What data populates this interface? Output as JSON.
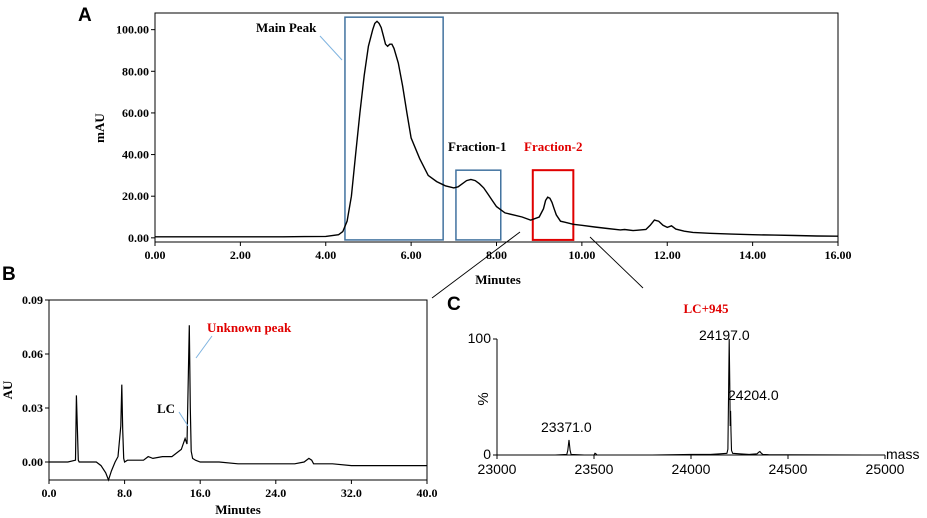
{
  "chart_data": [
    {
      "panel_label": "A",
      "type": "line",
      "xlabel": "Minutes",
      "ylabel": "mAU",
      "xlim": [
        0,
        16
      ],
      "ylim": [
        -2,
        108
      ],
      "x_ticks": [
        "0.00",
        "2.00",
        "4.00",
        "6.00",
        "8.00",
        "10.00",
        "12.00",
        "14.00",
        "16.00"
      ],
      "y_ticks": [
        "0.00",
        "20.00",
        "40.00",
        "60.00",
        "80.00",
        "100.00"
      ],
      "x_tick_values": [
        0,
        2,
        4,
        6,
        8,
        10,
        12,
        14,
        16
      ],
      "y_tick_values": [
        0,
        20,
        40,
        60,
        80,
        100
      ],
      "series": [
        {
          "x": [
            0,
            1,
            2,
            3,
            3.5,
            4,
            4.3,
            4.4,
            4.5,
            4.6,
            4.7,
            4.8,
            4.9,
            5.0,
            5.1,
            5.15,
            5.2,
            5.25,
            5.3,
            5.35,
            5.4,
            5.45,
            5.5,
            5.55,
            5.6,
            5.7,
            5.8,
            5.9,
            6.0,
            6.2,
            6.4,
            6.6,
            6.8,
            7.0,
            7.1,
            7.2,
            7.3,
            7.4,
            7.5,
            7.6,
            7.7,
            7.8,
            7.9,
            8.0,
            8.2,
            8.4,
            8.6,
            8.8,
            9.0,
            9.1,
            9.15,
            9.2,
            9.25,
            9.3,
            9.35,
            9.4,
            9.5,
            9.6,
            9.8,
            10.0,
            10.3,
            10.6,
            10.9,
            11.0,
            11.2,
            11.5,
            11.6,
            11.7,
            11.8,
            11.9,
            12.0,
            12.1,
            12.2,
            12.4,
            12.6,
            13.0,
            13.5,
            14.0,
            14.5,
            15.0,
            15.5,
            16.0
          ],
          "y": [
            0.5,
            0.5,
            0.5,
            0.5,
            0.6,
            0.7,
            1.5,
            3,
            8,
            20,
            40,
            60,
            78,
            92,
            100,
            103,
            104,
            103,
            101,
            97,
            93,
            92,
            93,
            93,
            91,
            84,
            73,
            60,
            48,
            38,
            30,
            27,
            25,
            24,
            24.5,
            26,
            27.5,
            28,
            27.5,
            26,
            24,
            21,
            18,
            15,
            12,
            11,
            10,
            8.5,
            10,
            14,
            18,
            19.5,
            19,
            17,
            14,
            11,
            8,
            7.5,
            6.5,
            6,
            5.2,
            4.5,
            3.8,
            4,
            3.5,
            4,
            6,
            8.5,
            8,
            6,
            5,
            5.8,
            4.2,
            3.2,
            2.6,
            2.2,
            1.8,
            1.5,
            1.3,
            1.1,
            0.9,
            0.8
          ]
        }
      ],
      "annotations": [
        {
          "text": "Main Peak",
          "color": "#000000"
        },
        {
          "text": "Fraction-1",
          "color": "#000000"
        },
        {
          "text": "Fraction-2",
          "color": "#e00000"
        }
      ],
      "regions": [
        {
          "name": "main-peak-box",
          "x": [
            4.45,
            6.75
          ],
          "y": [
            -1,
            106
          ],
          "color": "#41729f"
        },
        {
          "name": "fraction-1-box",
          "x": [
            7.05,
            8.1
          ],
          "y": [
            -1,
            32.5
          ],
          "color": "#41729f"
        },
        {
          "name": "fraction-2-box",
          "x": [
            8.85,
            9.8
          ],
          "y": [
            -1,
            32.5
          ],
          "color": "#e00000"
        }
      ],
      "grid": false
    },
    {
      "panel_label": "B",
      "type": "line",
      "xlabel": "Minutes",
      "ylabel": "AU",
      "xlim": [
        0,
        40
      ],
      "ylim": [
        -0.01,
        0.09
      ],
      "x_ticks": [
        "0.0",
        "8.0",
        "16.0",
        "24.0",
        "32.0",
        "40.0"
      ],
      "y_ticks": [
        "0.00",
        "0.03",
        "0.06",
        "0.09"
      ],
      "x_tick_values": [
        0,
        8,
        16,
        24,
        32,
        40
      ],
      "y_tick_values": [
        0,
        0.03,
        0.06,
        0.09
      ],
      "series": [
        {
          "x": [
            0,
            2,
            2.8,
            2.9,
            3.0,
            3.1,
            3.2,
            4,
            5,
            5.5,
            6,
            6.3,
            6.6,
            7,
            7.3,
            7.6,
            7.7,
            7.8,
            7.9,
            8,
            8.3,
            9,
            10,
            10.5,
            11,
            12,
            13,
            14,
            14.4,
            14.6,
            14.75,
            14.85,
            14.95,
            15.05,
            15.2,
            15.5,
            16,
            17,
            18,
            20,
            22,
            24,
            26,
            27,
            27.5,
            27.8,
            28,
            28.5,
            30,
            32,
            34,
            36,
            38,
            40
          ],
          "y": [
            0,
            0,
            0.001,
            0.037,
            0.02,
            0.001,
            0,
            0,
            0,
            -0.002,
            -0.006,
            -0.01,
            -0.005,
            0,
            0.003,
            0.02,
            0.043,
            0.018,
            0.002,
            0,
            0.001,
            0.001,
            0.001,
            0.003,
            0.002,
            0.003,
            0.003,
            0.007,
            0.013,
            0.01,
            0.05,
            0.076,
            0.03,
            0.006,
            0.002,
            0.001,
            0,
            0,
            0,
            -0.001,
            -0.001,
            -0.001,
            -0.001,
            0,
            0.002,
            0.001,
            -0.001,
            -0.001,
            -0.001,
            -0.002,
            -0.002,
            -0.002,
            -0.002,
            -0.002
          ]
        }
      ],
      "annotations": [
        {
          "text": "LC",
          "color": "#000000"
        },
        {
          "text": "Unknown peak",
          "color": "#e00000"
        }
      ],
      "grid": false
    },
    {
      "panel_label": "C",
      "type": "line",
      "title": "LC+945",
      "xlabel": "mass",
      "ylabel": "%",
      "xlim": [
        23000,
        25000
      ],
      "ylim": [
        0,
        100
      ],
      "x_ticks": [
        "23000",
        "23500",
        "24000",
        "24500",
        "25000"
      ],
      "y_ticks": [
        "0",
        "100"
      ],
      "x_tick_values": [
        23000,
        23500,
        24000,
        24500,
        25000
      ],
      "y_tick_values": [
        0,
        100
      ],
      "series": [
        {
          "x": [
            23000,
            23300,
            23360,
            23365,
            23371,
            23377,
            23382,
            23450,
            23500,
            23505,
            23510,
            23515,
            23600,
            23800,
            24000,
            24100,
            24150,
            24185,
            24190,
            24194,
            24197,
            24200,
            24202,
            24204,
            24206,
            24209,
            24215,
            24250,
            24300,
            24340,
            24350,
            24355,
            24360,
            24370,
            24400,
            24500,
            24700,
            24900,
            25000
          ],
          "y": [
            0,
            0,
            0.5,
            4,
            13,
            4,
            0.5,
            0,
            0,
            1.5,
            1,
            0,
            0,
            0,
            0.5,
            0.5,
            1,
            1.5,
            5,
            55,
            100,
            60,
            25,
            38,
            20,
            4,
            1.5,
            1,
            0.5,
            1,
            2.5,
            3,
            2,
            0.5,
            0.3,
            0.2,
            0.1,
            0,
            0
          ]
        }
      ],
      "peak_labels": [
        {
          "text": "24197.0",
          "x": 24197
        },
        {
          "text": "24204.0",
          "x": 24204
        },
        {
          "text": "23371.0",
          "x": 23371
        }
      ],
      "grid": false
    }
  ]
}
